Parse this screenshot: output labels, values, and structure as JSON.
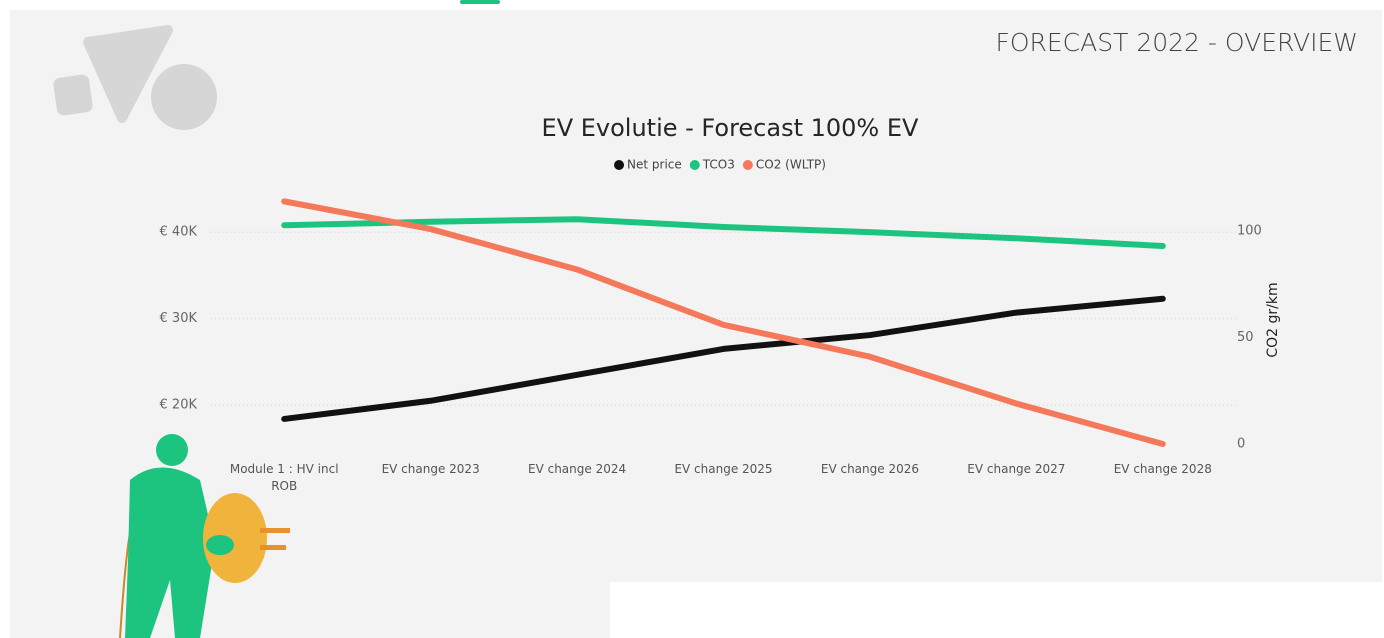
{
  "page_title": "FORECAST 2022 - OVERVIEW",
  "chart_data": {
    "type": "line",
    "title": "EV Evolutie - Forecast 100% EV",
    "categories": [
      "Module 1 : HV incl ROB",
      "EV change 2023",
      "EV change 2024",
      "EV change 2025",
      "EV change 2026",
      "EV change 2027",
      "EV change 2028"
    ],
    "series": [
      {
        "name": "Net price",
        "color": "#111111",
        "values": [
          18400,
          20500,
          23500,
          26500,
          28100,
          30700,
          32300
        ]
      },
      {
        "name": "TCO3",
        "color": "#1dc47f",
        "values": [
          40800,
          41200,
          41500,
          40600,
          40000,
          39300,
          38400
        ]
      },
      {
        "name": "CO2 (WLTP)",
        "color": "#f4795b",
        "axis": "y2",
        "values": [
          114,
          101,
          82,
          56,
          41,
          19,
          0
        ]
      }
    ],
    "ylim": [
      15500,
      44300
    ],
    "yticks": [
      {
        "value": 20000,
        "label": "€ 20K"
      },
      {
        "value": 30000,
        "label": "€ 30K"
      },
      {
        "value": 40000,
        "label": "€ 40K"
      }
    ],
    "y2lim": [
      0,
      117
    ],
    "y2ticks": [
      0,
      50,
      100
    ],
    "y2label": "CO2 gr/km",
    "grid": true,
    "legend": "top"
  }
}
